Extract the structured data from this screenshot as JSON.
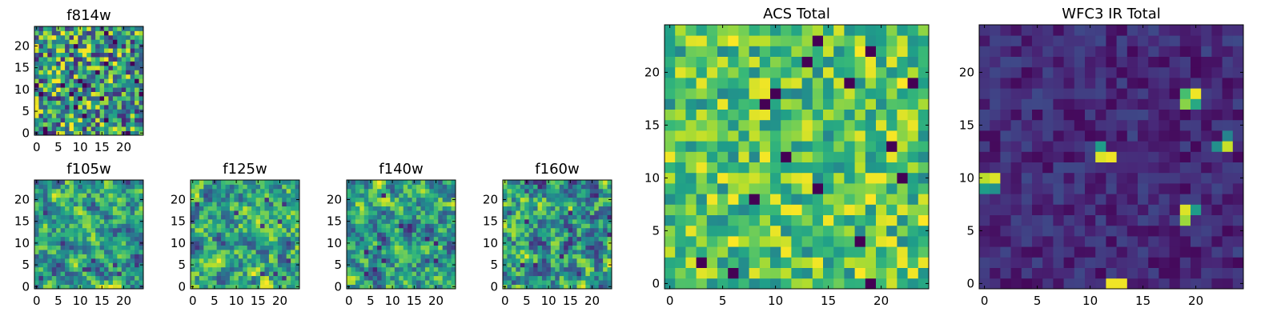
{
  "chart_data": [
    {
      "id": "f814w",
      "type": "heatmap",
      "title": "f814w",
      "colormap": "viridis",
      "grid_size": 25,
      "xlim": [
        0,
        24
      ],
      "ylim": [
        0,
        24
      ],
      "xticks": [
        "0",
        "5",
        "10",
        "15",
        "20"
      ],
      "yticks": [
        "0",
        "5",
        "10",
        "15",
        "20"
      ],
      "seed": 814,
      "field": "noise",
      "value_range": [
        0.1,
        1.0
      ]
    },
    {
      "id": "f105w",
      "type": "heatmap",
      "title": "f105w",
      "colormap": "viridis",
      "grid_size": 25,
      "xlim": [
        0,
        24
      ],
      "ylim": [
        0,
        24
      ],
      "xticks": [
        "0",
        "5",
        "10",
        "15",
        "20"
      ],
      "yticks": [
        "0",
        "5",
        "10",
        "15",
        "20"
      ],
      "seed": 105,
      "field": "smooth-noise",
      "value_range": [
        0.15,
        1.0
      ]
    },
    {
      "id": "f125w",
      "type": "heatmap",
      "title": "f125w",
      "colormap": "viridis",
      "grid_size": 25,
      "xlim": [
        0,
        24
      ],
      "ylim": [
        0,
        24
      ],
      "xticks": [
        "0",
        "5",
        "10",
        "15",
        "20"
      ],
      "yticks": [
        "0",
        "5",
        "10",
        "15",
        "20"
      ],
      "seed": 125,
      "field": "smooth-noise",
      "value_range": [
        0.15,
        1.0
      ]
    },
    {
      "id": "f140w",
      "type": "heatmap",
      "title": "f140w",
      "colormap": "viridis",
      "grid_size": 25,
      "xlim": [
        0,
        24
      ],
      "ylim": [
        0,
        24
      ],
      "xticks": [
        "0",
        "5",
        "10",
        "15",
        "20"
      ],
      "yticks": [
        "0",
        "5",
        "10",
        "15",
        "20"
      ],
      "seed": 140,
      "field": "smooth-noise",
      "value_range": [
        0.1,
        1.0
      ]
    },
    {
      "id": "f160w",
      "type": "heatmap",
      "title": "f160w",
      "colormap": "viridis",
      "grid_size": 25,
      "xlim": [
        0,
        24
      ],
      "ylim": [
        0,
        24
      ],
      "xticks": [
        "0",
        "5",
        "10",
        "15",
        "20"
      ],
      "yticks": [
        "0",
        "5",
        "10",
        "15",
        "20"
      ],
      "seed": 160,
      "field": "smooth-noise",
      "value_range": [
        0.1,
        1.0
      ]
    },
    {
      "id": "acs-total",
      "type": "heatmap",
      "title": "ACS Total",
      "colormap": "viridis",
      "grid_size": 25,
      "xlim": [
        0,
        24
      ],
      "ylim": [
        0,
        24
      ],
      "xticks": [
        "0",
        "5",
        "10",
        "15",
        "20"
      ],
      "yticks": [
        "0",
        "5",
        "10",
        "15",
        "20"
      ],
      "seed": 2001,
      "field": "noise",
      "value_range": [
        0.45,
        1.0
      ],
      "dark_pixels": [
        [
          10,
          18
        ],
        [
          14,
          23
        ],
        [
          19,
          22
        ],
        [
          13,
          21
        ],
        [
          17,
          19
        ],
        [
          8,
          8
        ],
        [
          14,
          9
        ],
        [
          23,
          19
        ],
        [
          21,
          13
        ],
        [
          6,
          1
        ],
        [
          19,
          0
        ],
        [
          3,
          2
        ],
        [
          9,
          17
        ],
        [
          11,
          12
        ],
        [
          18,
          4
        ],
        [
          22,
          10
        ]
      ]
    },
    {
      "id": "wfc3-ir-total",
      "type": "heatmap",
      "title": "WFC3 IR Total",
      "colormap": "viridis",
      "grid_size": 25,
      "xlim": [
        0,
        24
      ],
      "ylim": [
        0,
        24
      ],
      "xticks": [
        "0",
        "5",
        "10",
        "15",
        "20"
      ],
      "yticks": [
        "0",
        "5",
        "10",
        "15",
        "20"
      ],
      "seed": 3001,
      "field": "noise",
      "value_range": [
        0.02,
        0.22
      ],
      "bright_pixels": [
        [
          19,
          18,
          0.7
        ],
        [
          20,
          18,
          0.98
        ],
        [
          19,
          17,
          0.82
        ],
        [
          20,
          17,
          0.6
        ],
        [
          11,
          12,
          0.95
        ],
        [
          12,
          12,
          0.98
        ],
        [
          11,
          13,
          0.55
        ],
        [
          23,
          14,
          0.45
        ],
        [
          23,
          13,
          0.92
        ],
        [
          22,
          13,
          0.5
        ],
        [
          0,
          10,
          0.9
        ],
        [
          1,
          10,
          0.95
        ],
        [
          0,
          9,
          0.55
        ],
        [
          1,
          9,
          0.5
        ],
        [
          19,
          7,
          0.95
        ],
        [
          20,
          7,
          0.55
        ],
        [
          19,
          6,
          0.85
        ],
        [
          12,
          0,
          0.98
        ],
        [
          13,
          0,
          0.98
        ]
      ]
    }
  ]
}
